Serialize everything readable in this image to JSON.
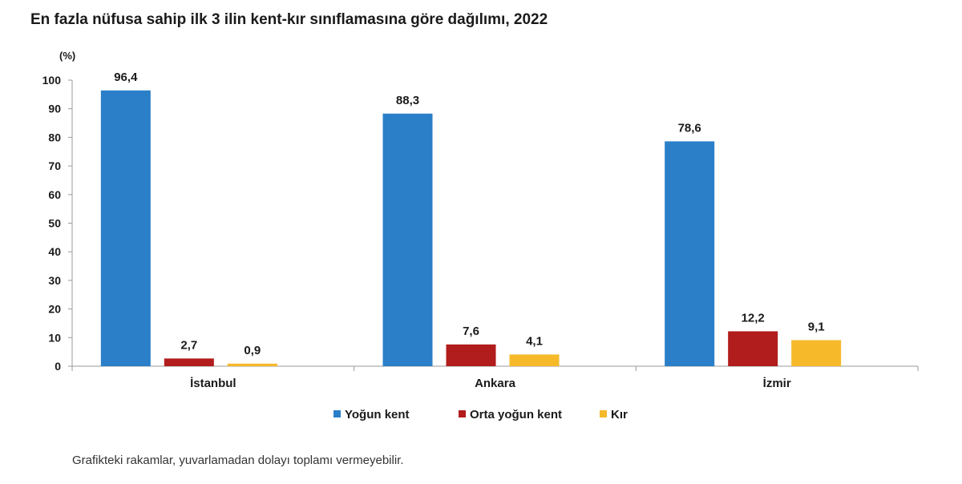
{
  "chart_data": {
    "type": "bar",
    "title": "En fazla nüfusa sahip ilk 3 ilin kent-kır sınıflamasına göre dağılımı, 2022",
    "ylabel": "(%)",
    "xlabel": "",
    "ylim": [
      0,
      100
    ],
    "yticks": [
      "0",
      "10",
      "20",
      "30",
      "40",
      "50",
      "60",
      "70",
      "80",
      "90",
      "100"
    ],
    "categories": [
      "İstanbul",
      "Ankara",
      "İzmir"
    ],
    "series": [
      {
        "name": "Yoğun kent",
        "color": "#2a7fc8",
        "values": [
          96.4,
          88.3,
          78.6
        ],
        "labels": [
          "96,4",
          "88,3",
          "78,6"
        ]
      },
      {
        "name": "Orta yoğun kent",
        "color": "#b11c1c",
        "values": [
          2.7,
          7.6,
          12.2
        ],
        "labels": [
          "2,7",
          "7,6",
          "12,2"
        ]
      },
      {
        "name": "Kır",
        "color": "#f5b92a",
        "values": [
          0.9,
          4.1,
          9.1
        ],
        "labels": [
          "0,9",
          "4,1",
          "9,1"
        ]
      }
    ],
    "legend_position": "bottom",
    "grid": false
  },
  "footnote": "Grafikteki rakamlar, yuvarlamadan dolayı toplamı vermeyebilir."
}
